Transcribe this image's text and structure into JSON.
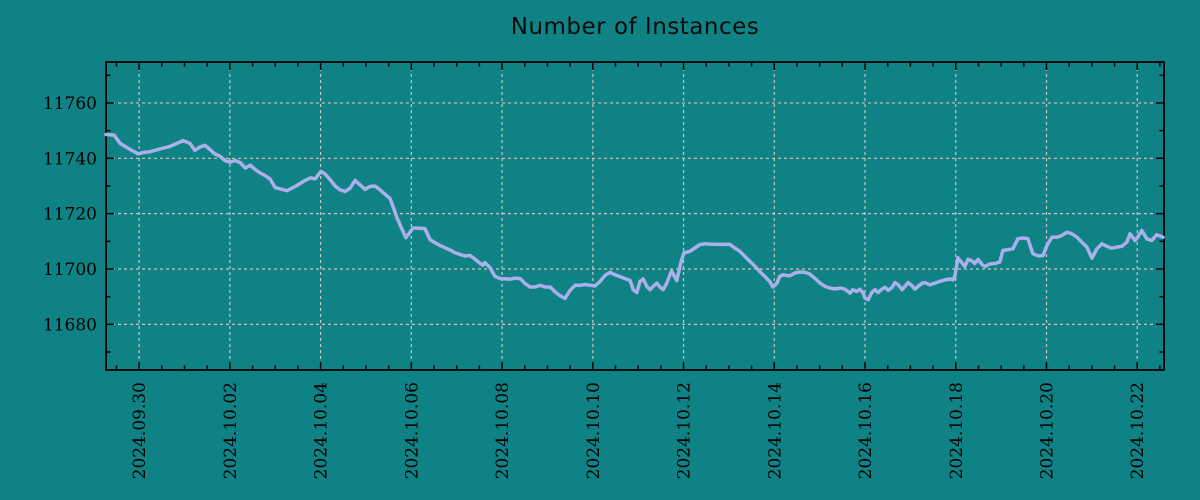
{
  "page": {
    "background_color": "#0f8285"
  },
  "chart_data": {
    "type": "line",
    "title": "Number of Instances",
    "xlabel": "",
    "ylabel": "",
    "legend": "none",
    "grid": "dashed major gridlines, both axes",
    "x_axis": {
      "unit": "date",
      "tick_labels": [
        "2024.09.30",
        "2024.10.02",
        "2024.10.04",
        "2024.10.06",
        "2024.10.08",
        "2024.10.10",
        "2024.10.12",
        "2024.10.14",
        "2024.10.16",
        "2024.10.18",
        "2024.10.20",
        "2024.10.22"
      ],
      "tick_positions_days": [
        0,
        2,
        4,
        6,
        8,
        10,
        12,
        14,
        16,
        18,
        20,
        22
      ],
      "minor_tick_step_days": 0.5,
      "xlim_days": [
        -0.73,
        22.59
      ],
      "label_rotation_deg": 90
    },
    "y_axis": {
      "tick_labels": [
        "11680",
        "11700",
        "11720",
        "11740",
        "11760"
      ],
      "tick_values": [
        11680,
        11700,
        11720,
        11740,
        11760
      ],
      "minor_tick_values": [
        11670,
        11690,
        11710,
        11730,
        11750,
        11770
      ],
      "ylim": [
        11663.5,
        11774.8
      ]
    },
    "colors": {
      "background": "#0f8285",
      "line": "#acb0e8",
      "grid": "#cdc4c4",
      "axis": "#000000",
      "text": "#000000"
    },
    "series": [
      {
        "name": "instances",
        "color": "#acb0e8",
        "points_day_value": [
          [
            -0.73,
            11748.6
          ],
          [
            -0.55,
            11748.4
          ],
          [
            -0.42,
            11745.4
          ],
          [
            -0.2,
            11743.2
          ],
          [
            -0.02,
            11741.6
          ],
          [
            0.09,
            11742.1
          ],
          [
            0.24,
            11742.4
          ],
          [
            0.46,
            11743.4
          ],
          [
            0.68,
            11744.3
          ],
          [
            0.9,
            11745.9
          ],
          [
            0.97,
            11746.4
          ],
          [
            1.12,
            11745.4
          ],
          [
            1.23,
            11742.9
          ],
          [
            1.34,
            11744.1
          ],
          [
            1.45,
            11744.7
          ],
          [
            1.56,
            11743.2
          ],
          [
            1.67,
            11741.6
          ],
          [
            1.78,
            11740.8
          ],
          [
            1.89,
            11739.2
          ],
          [
            2.0,
            11738.6
          ],
          [
            2.12,
            11739.2
          ],
          [
            2.23,
            11738.4
          ],
          [
            2.34,
            11736.5
          ],
          [
            2.45,
            11737.5
          ],
          [
            2.56,
            11735.9
          ],
          [
            2.67,
            11734.7
          ],
          [
            2.78,
            11733.7
          ],
          [
            2.89,
            11732.5
          ],
          [
            3.0,
            11729.4
          ],
          [
            3.26,
            11728.3
          ],
          [
            3.44,
            11729.8
          ],
          [
            3.66,
            11732.0
          ],
          [
            3.77,
            11732.9
          ],
          [
            3.88,
            11732.6
          ],
          [
            4.01,
            11735.3
          ],
          [
            4.1,
            11734.3
          ],
          [
            4.21,
            11732.3
          ],
          [
            4.32,
            11730.0
          ],
          [
            4.43,
            11728.6
          ],
          [
            4.54,
            11728.0
          ],
          [
            4.65,
            11729.2
          ],
          [
            4.76,
            11732.0
          ],
          [
            4.87,
            11730.4
          ],
          [
            4.98,
            11728.8
          ],
          [
            5.09,
            11729.8
          ],
          [
            5.2,
            11730.0
          ],
          [
            5.31,
            11728.6
          ],
          [
            5.42,
            11727.0
          ],
          [
            5.53,
            11725.5
          ],
          [
            5.6,
            11722.4
          ],
          [
            5.69,
            11718.2
          ],
          [
            5.75,
            11716.0
          ],
          [
            5.88,
            11711.3
          ],
          [
            6.04,
            11714.8
          ],
          [
            6.19,
            11714.7
          ],
          [
            6.3,
            11714.6
          ],
          [
            6.41,
            11710.7
          ],
          [
            6.52,
            11709.5
          ],
          [
            6.63,
            11708.5
          ],
          [
            6.74,
            11707.7
          ],
          [
            6.85,
            11706.9
          ],
          [
            6.96,
            11705.9
          ],
          [
            7.07,
            11705.3
          ],
          [
            7.18,
            11704.7
          ],
          [
            7.29,
            11704.9
          ],
          [
            7.4,
            11703.6
          ],
          [
            7.51,
            11702.1
          ],
          [
            7.58,
            11701.4
          ],
          [
            7.62,
            11702.3
          ],
          [
            7.73,
            11700.6
          ],
          [
            7.84,
            11697.4
          ],
          [
            7.96,
            11696.5
          ],
          [
            8.07,
            11696.5
          ],
          [
            8.18,
            11696.3
          ],
          [
            8.29,
            11696.7
          ],
          [
            8.4,
            11696.5
          ],
          [
            8.51,
            11694.7
          ],
          [
            8.62,
            11693.5
          ],
          [
            8.73,
            11693.5
          ],
          [
            8.84,
            11694.1
          ],
          [
            8.95,
            11693.5
          ],
          [
            9.06,
            11693.5
          ],
          [
            9.17,
            11691.7
          ],
          [
            9.28,
            11690.3
          ],
          [
            9.39,
            11689.4
          ],
          [
            9.5,
            11692.3
          ],
          [
            9.61,
            11694.1
          ],
          [
            9.72,
            11694.1
          ],
          [
            9.83,
            11694.4
          ],
          [
            9.94,
            11694.1
          ],
          [
            10.05,
            11693.9
          ],
          [
            10.16,
            11695.5
          ],
          [
            10.27,
            11697.7
          ],
          [
            10.38,
            11698.8
          ],
          [
            10.49,
            11697.9
          ],
          [
            10.6,
            11697.3
          ],
          [
            10.71,
            11696.5
          ],
          [
            10.82,
            11695.9
          ],
          [
            10.89,
            11692.5
          ],
          [
            10.97,
            11691.5
          ],
          [
            11.04,
            11695.5
          ],
          [
            11.11,
            11696.4
          ],
          [
            11.19,
            11693.7
          ],
          [
            11.26,
            11692.5
          ],
          [
            11.33,
            11693.7
          ],
          [
            11.41,
            11694.9
          ],
          [
            11.48,
            11693.5
          ],
          [
            11.55,
            11692.5
          ],
          [
            11.63,
            11694.9
          ],
          [
            11.7,
            11697.9
          ],
          [
            11.74,
            11699.2
          ],
          [
            11.85,
            11695.8
          ],
          [
            11.95,
            11702.9
          ],
          [
            12.01,
            11705.8
          ],
          [
            12.14,
            11706.4
          ],
          [
            12.25,
            11707.6
          ],
          [
            12.36,
            11708.8
          ],
          [
            12.47,
            11709.1
          ],
          [
            12.58,
            11709.0
          ],
          [
            12.8,
            11708.9
          ],
          [
            13.02,
            11708.9
          ],
          [
            13.13,
            11707.6
          ],
          [
            13.24,
            11706.4
          ],
          [
            13.35,
            11704.6
          ],
          [
            13.46,
            11702.8
          ],
          [
            13.57,
            11701.0
          ],
          [
            13.68,
            11699.1
          ],
          [
            13.79,
            11697.3
          ],
          [
            13.9,
            11695.5
          ],
          [
            13.97,
            11693.5
          ],
          [
            14.06,
            11694.9
          ],
          [
            14.12,
            11697.3
          ],
          [
            14.19,
            11697.9
          ],
          [
            14.34,
            11697.5
          ],
          [
            14.45,
            11698.5
          ],
          [
            14.56,
            11698.9
          ],
          [
            14.67,
            11698.8
          ],
          [
            14.78,
            11698.2
          ],
          [
            14.89,
            11696.7
          ],
          [
            15.01,
            11694.9
          ],
          [
            15.12,
            11693.7
          ],
          [
            15.23,
            11693.1
          ],
          [
            15.34,
            11692.8
          ],
          [
            15.45,
            11693.1
          ],
          [
            15.56,
            11692.7
          ],
          [
            15.67,
            11691.3
          ],
          [
            15.73,
            11692.5
          ],
          [
            15.82,
            11691.9
          ],
          [
            15.89,
            11692.7
          ],
          [
            15.95,
            11691.5
          ],
          [
            16.0,
            11689.5
          ],
          [
            16.07,
            11688.9
          ],
          [
            16.15,
            11691.5
          ],
          [
            16.22,
            11692.5
          ],
          [
            16.29,
            11691.5
          ],
          [
            16.37,
            11692.7
          ],
          [
            16.44,
            11693.4
          ],
          [
            16.51,
            11692.3
          ],
          [
            16.6,
            11693.4
          ],
          [
            16.66,
            11695.1
          ],
          [
            16.73,
            11694.3
          ],
          [
            16.82,
            11692.5
          ],
          [
            16.88,
            11693.7
          ],
          [
            16.95,
            11695.1
          ],
          [
            17.04,
            11693.9
          ],
          [
            17.1,
            11692.7
          ],
          [
            17.17,
            11693.7
          ],
          [
            17.26,
            11694.9
          ],
          [
            17.32,
            11695.1
          ],
          [
            17.43,
            11694.3
          ],
          [
            17.54,
            11694.9
          ],
          [
            17.65,
            11695.5
          ],
          [
            17.76,
            11696.1
          ],
          [
            17.87,
            11696.4
          ],
          [
            17.94,
            11696.1
          ],
          [
            17.98,
            11697.3
          ],
          [
            18.05,
            11704.0
          ],
          [
            18.14,
            11702.2
          ],
          [
            18.2,
            11700.9
          ],
          [
            18.27,
            11703.5
          ],
          [
            18.36,
            11702.9
          ],
          [
            18.42,
            11702.0
          ],
          [
            18.49,
            11703.5
          ],
          [
            18.58,
            11701.6
          ],
          [
            18.64,
            11700.9
          ],
          [
            18.75,
            11701.8
          ],
          [
            18.86,
            11702.0
          ],
          [
            18.97,
            11702.5
          ],
          [
            19.04,
            11706.7
          ],
          [
            19.15,
            11707.0
          ],
          [
            19.26,
            11707.3
          ],
          [
            19.37,
            11710.9
          ],
          [
            19.48,
            11711.2
          ],
          [
            19.59,
            11710.9
          ],
          [
            19.7,
            11705.5
          ],
          [
            19.81,
            11704.8
          ],
          [
            19.92,
            11704.8
          ],
          [
            20.01,
            11708.5
          ],
          [
            20.12,
            11711.5
          ],
          [
            20.23,
            11711.5
          ],
          [
            20.34,
            11712.1
          ],
          [
            20.45,
            11713.3
          ],
          [
            20.56,
            11712.7
          ],
          [
            20.67,
            11711.5
          ],
          [
            20.78,
            11709.7
          ],
          [
            20.89,
            11707.9
          ],
          [
            21.0,
            11703.9
          ],
          [
            21.11,
            11707.3
          ],
          [
            21.22,
            11709.1
          ],
          [
            21.33,
            11708.2
          ],
          [
            21.44,
            11707.5
          ],
          [
            21.55,
            11707.9
          ],
          [
            21.66,
            11708.2
          ],
          [
            21.77,
            11709.7
          ],
          [
            21.84,
            11712.7
          ],
          [
            21.95,
            11710.3
          ],
          [
            22.01,
            11711.5
          ],
          [
            22.1,
            11713.9
          ],
          [
            22.21,
            11710.9
          ],
          [
            22.32,
            11710.3
          ],
          [
            22.43,
            11712.4
          ],
          [
            22.57,
            11711.5
          ]
        ]
      }
    ]
  }
}
